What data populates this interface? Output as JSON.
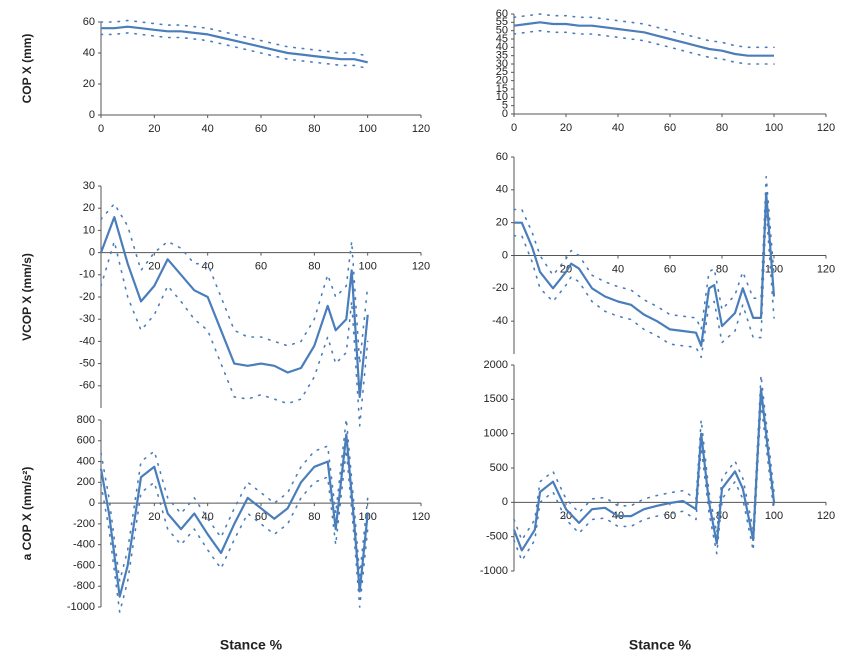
{
  "chart_data": [
    {
      "type": "line",
      "y_label": "COP X (mm)",
      "xlim": [
        0,
        120
      ],
      "xticks": [
        0,
        20,
        40,
        60,
        80,
        100,
        120
      ],
      "ylim": [
        0,
        60
      ],
      "yticks": [
        0,
        20,
        40,
        60
      ],
      "x": [
        0,
        5,
        10,
        15,
        20,
        25,
        30,
        35,
        40,
        45,
        50,
        55,
        60,
        65,
        70,
        75,
        80,
        85,
        90,
        95,
        100
      ],
      "series": [
        {
          "color": "#4a7ebb",
          "style": "solid",
          "values": [
            56,
            56,
            57,
            56,
            55,
            54,
            54,
            53,
            52,
            50,
            48,
            46,
            44,
            42,
            40,
            39,
            38,
            37,
            36,
            36,
            34
          ]
        },
        {
          "color": "#4a7ebb",
          "style": "dotted",
          "values": [
            60,
            60,
            61,
            60,
            59,
            58,
            58,
            57,
            56,
            54,
            52,
            50,
            48,
            46,
            44,
            43,
            42,
            41,
            40,
            40,
            38
          ]
        },
        {
          "color": "#4a7ebb",
          "style": "dotted",
          "values": [
            52,
            52,
            53,
            52,
            51,
            50,
            50,
            49,
            48,
            46,
            44,
            42,
            40,
            38,
            36,
            35,
            34,
            33,
            32,
            32,
            30
          ]
        }
      ]
    },
    {
      "type": "line",
      "xlim": [
        0,
        120
      ],
      "xticks": [
        0,
        20,
        40,
        60,
        80,
        100,
        120
      ],
      "ylim": [
        0,
        60
      ],
      "yticks": [
        0,
        5,
        10,
        15,
        20,
        25,
        30,
        35,
        40,
        45,
        50,
        55,
        60
      ],
      "x": [
        0,
        5,
        10,
        15,
        20,
        25,
        30,
        35,
        40,
        45,
        50,
        55,
        60,
        65,
        70,
        75,
        80,
        85,
        90,
        95,
        100
      ],
      "series": [
        {
          "color": "#4a7ebb",
          "style": "solid",
          "values": [
            53,
            54,
            55,
            54,
            54,
            53,
            53,
            52,
            51,
            50,
            49,
            47,
            45,
            43,
            41,
            39,
            38,
            36,
            35,
            35,
            35
          ]
        },
        {
          "color": "#4a7ebb",
          "style": "dotted",
          "values": [
            58,
            59,
            60,
            59,
            59,
            58,
            58,
            57,
            56,
            55,
            54,
            52,
            50,
            48,
            46,
            44,
            43,
            41,
            40,
            40,
            40
          ]
        },
        {
          "color": "#4a7ebb",
          "style": "dotted",
          "values": [
            48,
            49,
            50,
            49,
            49,
            48,
            48,
            47,
            46,
            45,
            44,
            42,
            40,
            38,
            36,
            34,
            33,
            31,
            30,
            30,
            30
          ]
        }
      ]
    },
    {
      "type": "line",
      "y_label": "VCOP X (mm/s)",
      "xlim": [
        0,
        120
      ],
      "xticks": [
        20,
        40,
        60,
        80,
        100,
        120
      ],
      "ylim": [
        -70,
        30
      ],
      "yticks": [
        -60,
        -50,
        -40,
        -30,
        -20,
        -10,
        0,
        10,
        20,
        30
      ],
      "x": [
        0,
        5,
        10,
        15,
        20,
        25,
        30,
        35,
        40,
        45,
        50,
        55,
        60,
        65,
        70,
        75,
        80,
        85,
        88,
        92,
        94,
        97,
        100
      ],
      "series": [
        {
          "color": "#4a7ebb",
          "style": "solid",
          "values": [
            0,
            16,
            -5,
            -22,
            -15,
            -3,
            -10,
            -17,
            -20,
            -35,
            -50,
            -51,
            -50,
            -51,
            -54,
            -52,
            -42,
            -24,
            -35,
            -30,
            -8,
            -65,
            -28
          ]
        },
        {
          "color": "#4a7ebb",
          "style": "dotted",
          "values": [
            15,
            22,
            12,
            -8,
            0,
            5,
            2,
            -5,
            -5,
            -20,
            -35,
            -38,
            -38,
            -40,
            -42,
            -40,
            -30,
            -10,
            -20,
            -15,
            5,
            -50,
            -15
          ]
        },
        {
          "color": "#4a7ebb",
          "style": "dotted",
          "values": [
            -15,
            5,
            -20,
            -35,
            -28,
            -15,
            -22,
            -30,
            -35,
            -50,
            -65,
            -66,
            -64,
            -66,
            -68,
            -66,
            -56,
            -38,
            -50,
            -45,
            -22,
            -78,
            -40
          ]
        }
      ]
    },
    {
      "type": "line",
      "xlim": [
        0,
        120
      ],
      "xticks": [
        20,
        40,
        60,
        80,
        100,
        120
      ],
      "ylim": [
        -60,
        60
      ],
      "yticks": [
        -40,
        -20,
        0,
        20,
        40,
        60
      ],
      "x": [
        0,
        3,
        7,
        10,
        15,
        20,
        22,
        25,
        30,
        35,
        40,
        45,
        50,
        55,
        60,
        65,
        70,
        72,
        75,
        77,
        80,
        85,
        88,
        92,
        95,
        97,
        100
      ],
      "series": [
        {
          "color": "#4a7ebb",
          "style": "solid",
          "values": [
            20,
            20,
            5,
            -10,
            -20,
            -10,
            -5,
            -8,
            -20,
            -25,
            -28,
            -30,
            -36,
            -40,
            -45,
            -46,
            -47,
            -55,
            -20,
            -18,
            -43,
            -35,
            -20,
            -38,
            -38,
            38,
            -25
          ]
        },
        {
          "color": "#4a7ebb",
          "style": "dotted",
          "values": [
            28,
            28,
            14,
            0,
            -12,
            -2,
            3,
            0,
            -12,
            -16,
            -19,
            -21,
            -27,
            -31,
            -36,
            -37,
            -38,
            -45,
            -10,
            -8,
            -33,
            -24,
            -10,
            -26,
            -26,
            48,
            -12
          ]
        },
        {
          "color": "#4a7ebb",
          "style": "dotted",
          "values": [
            12,
            12,
            -4,
            -20,
            -28,
            -18,
            -13,
            -16,
            -28,
            -34,
            -37,
            -39,
            -45,
            -49,
            -54,
            -55,
            -56,
            -62,
            -30,
            -28,
            -53,
            -46,
            -30,
            -50,
            -50,
            28,
            -38
          ]
        }
      ]
    },
    {
      "type": "line",
      "y_label": "a COP X (mm/s²)",
      "x_label": "Stance %",
      "xlim": [
        0,
        120
      ],
      "xticks": [
        20,
        40,
        60,
        80,
        100,
        120
      ],
      "ylim": [
        -1000,
        800
      ],
      "yticks": [
        -1000,
        -800,
        -600,
        -400,
        -200,
        0,
        200,
        400,
        600,
        800
      ],
      "x": [
        0,
        3,
        7,
        10,
        15,
        20,
        25,
        30,
        35,
        40,
        45,
        50,
        55,
        60,
        65,
        70,
        75,
        80,
        85,
        88,
        92,
        95,
        97,
        100
      ],
      "series": [
        {
          "color": "#4a7ebb",
          "style": "solid",
          "values": [
            330,
            -100,
            -900,
            -600,
            250,
            350,
            -100,
            -250,
            -100,
            -300,
            -480,
            -200,
            50,
            -50,
            -150,
            -50,
            200,
            350,
            400,
            -250,
            660,
            -200,
            -850,
            -100
          ]
        },
        {
          "color": "#4a7ebb",
          "style": "dotted",
          "values": [
            480,
            50,
            -750,
            -450,
            400,
            500,
            50,
            -100,
            50,
            -150,
            -330,
            -50,
            200,
            100,
            0,
            100,
            350,
            500,
            550,
            -100,
            810,
            -50,
            -700,
            50
          ]
        },
        {
          "color": "#4a7ebb",
          "style": "dotted",
          "values": [
            180,
            -250,
            -1050,
            -750,
            100,
            200,
            -250,
            -400,
            -250,
            -450,
            -630,
            -350,
            -100,
            -200,
            -300,
            -200,
            50,
            200,
            250,
            -400,
            510,
            -350,
            -1000,
            -250
          ]
        }
      ]
    },
    {
      "type": "line",
      "x_label": "Stance %",
      "xlim": [
        0,
        120
      ],
      "xticks": [
        20,
        40,
        60,
        80,
        100,
        120
      ],
      "ylim": [
        -1000,
        2000
      ],
      "yticks": [
        -1000,
        -500,
        0,
        500,
        1000,
        1500,
        2000
      ],
      "x": [
        0,
        3,
        8,
        10,
        15,
        20,
        25,
        30,
        35,
        40,
        45,
        50,
        55,
        60,
        65,
        70,
        72,
        75,
        78,
        80,
        85,
        88,
        92,
        95,
        100
      ],
      "series": [
        {
          "color": "#4a7ebb",
          "style": "solid",
          "values": [
            -400,
            -700,
            -400,
            150,
            300,
            -100,
            -300,
            -100,
            -80,
            -200,
            -200,
            -100,
            -50,
            -10,
            20,
            -100,
            1000,
            0,
            -600,
            200,
            450,
            200,
            -550,
            1650,
            0
          ]
        },
        {
          "color": "#4a7ebb",
          "style": "dotted",
          "values": [
            -250,
            -550,
            -250,
            300,
            450,
            50,
            -150,
            50,
            70,
            -50,
            -50,
            50,
            100,
            140,
            170,
            50,
            1200,
            150,
            -450,
            350,
            600,
            350,
            -400,
            1850,
            150
          ]
        },
        {
          "color": "#4a7ebb",
          "style": "dotted",
          "values": [
            -550,
            -850,
            -550,
            0,
            150,
            -250,
            -450,
            -250,
            -230,
            -350,
            -350,
            -250,
            -200,
            -160,
            -130,
            -250,
            800,
            -150,
            -750,
            50,
            300,
            50,
            -700,
            1450,
            -150
          ]
        }
      ]
    }
  ]
}
